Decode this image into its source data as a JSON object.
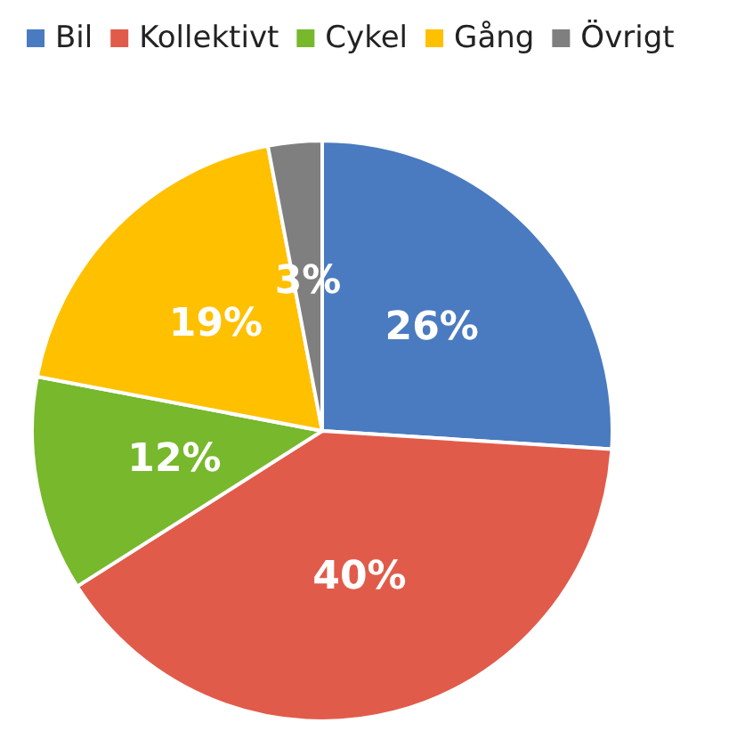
{
  "chart_data": {
    "type": "pie",
    "categories": [
      "Bil",
      "Kollektivt",
      "Cykel",
      "Gång",
      "Övrigt"
    ],
    "values": [
      26,
      40,
      12,
      19,
      3
    ],
    "colors": [
      "#4a7bc0",
      "#e15b4a",
      "#77b82c",
      "#ffc000",
      "#7f7f7f"
    ],
    "value_labels": [
      "26%",
      "40%",
      "12%",
      "19%",
      "3%"
    ],
    "legend": "top left"
  }
}
